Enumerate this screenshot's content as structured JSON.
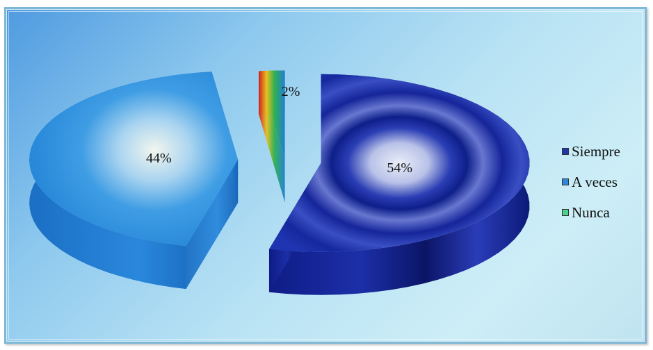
{
  "chart_data": {
    "type": "pie",
    "categories": [
      "Siempre",
      "A veces",
      "Nunca"
    ],
    "values": [
      54,
      44,
      2
    ],
    "data_labels": [
      "54%",
      "44%",
      "2%"
    ],
    "colors": [
      "#1a2fa8",
      "#2f8ee0",
      "#c9b13a"
    ],
    "legend_placement": "right",
    "exploded": true,
    "style": "3d"
  },
  "legend": {
    "items": [
      {
        "label": "Siempre",
        "color": "#2235b0"
      },
      {
        "label": "A veces",
        "color": "#2f86d8"
      },
      {
        "label": "Nunca",
        "color": "#4fd08a"
      }
    ]
  }
}
